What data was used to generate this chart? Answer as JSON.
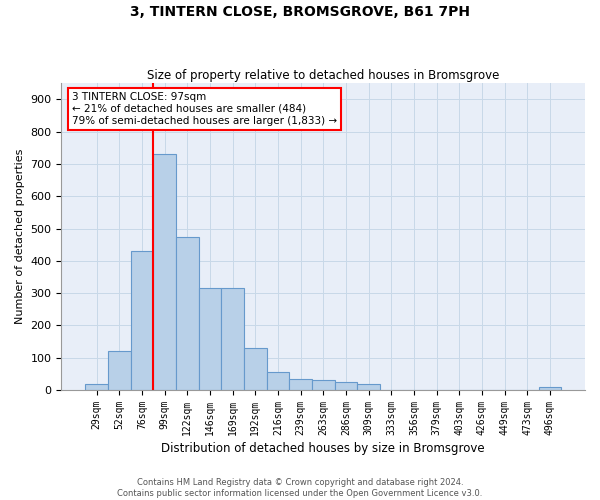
{
  "title": "3, TINTERN CLOSE, BROMSGROVE, B61 7PH",
  "subtitle": "Size of property relative to detached houses in Bromsgrove",
  "xlabel": "Distribution of detached houses by size in Bromsgrove",
  "ylabel": "Number of detached properties",
  "footer_line1": "Contains HM Land Registry data © Crown copyright and database right 2024.",
  "footer_line2": "Contains public sector information licensed under the Open Government Licence v3.0.",
  "bin_labels": [
    "29sqm",
    "52sqm",
    "76sqm",
    "99sqm",
    "122sqm",
    "146sqm",
    "169sqm",
    "192sqm",
    "216sqm",
    "239sqm",
    "263sqm",
    "286sqm",
    "309sqm",
    "333sqm",
    "356sqm",
    "379sqm",
    "403sqm",
    "426sqm",
    "449sqm",
    "473sqm",
    "496sqm"
  ],
  "bar_values": [
    18,
    120,
    430,
    730,
    475,
    315,
    315,
    130,
    55,
    35,
    30,
    25,
    20,
    0,
    0,
    0,
    0,
    0,
    0,
    0,
    8
  ],
  "bar_color": "#b8d0e8",
  "bar_edge_color": "#6699cc",
  "bar_edge_width": 0.8,
  "grid_color": "#c8d8e8",
  "property_line_color": "red",
  "annotation_text": "3 TINTERN CLOSE: 97sqm\n← 21% of detached houses are smaller (484)\n79% of semi-detached houses are larger (1,833) →",
  "annotation_box_color": "white",
  "annotation_box_edge": "red",
  "ylim": [
    0,
    950
  ],
  "yticks": [
    0,
    100,
    200,
    300,
    400,
    500,
    600,
    700,
    800,
    900
  ],
  "background_color": "#e8eef8"
}
